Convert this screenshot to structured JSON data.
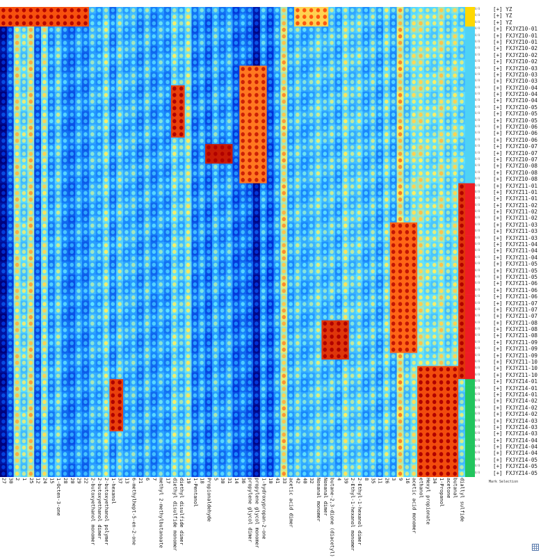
{
  "selection_label": "Mark Selection",
  "chart_data": {
    "type": "heatmap",
    "title": "",
    "xlabel": "",
    "ylabel": "",
    "colormap": [
      "#00007a",
      "#0030d8",
      "#1a8cff",
      "#5fe0ff",
      "#fff060",
      "#ff5a10",
      "#b00000"
    ],
    "row_value_label": "0/0",
    "rows": [
      "[+] YZ",
      "[+] YZ",
      "[+] YZ",
      "[+] FXJYZ10-01",
      "[+] FXJYZ10-01",
      "[+] FXJYZ10-01",
      "[+] FXJYZ10-02",
      "[+] FXJYZ10-02",
      "[+] FXJYZ10-02",
      "[+] FXJYZ10-03",
      "[+] FXJYZ10-03",
      "[+] FXJYZ10-03",
      "[+] FXJYZ10-04",
      "[+] FXJYZ10-04",
      "[+] FXJYZ10-04",
      "[+] FXJYZ10-05",
      "[+] FXJYZ10-05",
      "[+] FXJYZ10-05",
      "[+] FXJYZ10-06",
      "[+] FXJYZ10-06",
      "[+] FXJYZ10-06",
      "[+] FXJYZ10-07",
      "[+] FXJYZ10-07",
      "[+] FXJYZ10-07",
      "[+] FXJYZ10-08",
      "[+] FXJYZ10-08",
      "[+] FXJYZ10-08",
      "[+] FXJYZ11-01",
      "[+] FXJYZ11-01",
      "[+] FXJYZ11-01",
      "[+] FXJYZ11-02",
      "[+] FXJYZ11-02",
      "[+] FXJYZ11-02",
      "[+] FXJYZ11-03",
      "[+] FXJYZ11-03",
      "[+] FXJYZ11-03",
      "[+] FXJYZ11-04",
      "[+] FXJYZ11-04",
      "[+] FXJYZ11-04",
      "[+] FXJYZ11-05",
      "[+] FXJYZ11-05",
      "[+] FXJYZ11-05",
      "[+] FXJYZ11-06",
      "[+] FXJYZ11-06",
      "[+] FXJYZ11-06",
      "[+] FXJYZ11-07",
      "[+] FXJYZ11-07",
      "[+] FXJYZ11-07",
      "[+] FXJYZ11-08",
      "[+] FXJYZ11-08",
      "[+] FXJYZ11-08",
      "[+] FXJYZ11-09",
      "[+] FXJYZ11-09",
      "[+] FXJYZ11-09",
      "[+] FXJYZ11-10",
      "[+] FXJYZ11-10",
      "[+] FXJYZ11-10",
      "[+] FXJYZ14-01",
      "[+] FXJYZ14-01",
      "[+] FXJYZ14-01",
      "[+] FXJYZ14-02",
      "[+] FXJYZ14-02",
      "[+] FXJYZ14-02",
      "[+] FXJYZ14-03",
      "[+] FXJYZ14-03",
      "[+] FXJYZ14-03",
      "[+] FXJYZ14-04",
      "[+] FXJYZ14-04",
      "[+] FXJYZ14-04",
      "[+] FXJYZ14-05",
      "[+] FXJYZ14-05",
      "[+] FXJYZ14-05"
    ],
    "group_colors": [
      {
        "group": "YZ",
        "color": "#ffd800"
      },
      {
        "group": "FXJYZ10",
        "color": "#4fd2f5"
      },
      {
        "group": "FXJYZ11",
        "color": "#ee1c24"
      },
      {
        "group": "FXJYZ14",
        "color": "#22c55e"
      }
    ],
    "columns": [
      {
        "id": "27",
        "name": ""
      },
      {
        "id": "30",
        "name": ""
      },
      {
        "id": "2",
        "name": "2-heptanone monomer"
      },
      {
        "id": "1",
        "name": "2-heptanone dimer"
      },
      {
        "id": "25",
        "name": ""
      },
      {
        "id": "12",
        "name": ""
      },
      {
        "id": "24",
        "name": ""
      },
      {
        "id": "15",
        "name": ""
      },
      {
        "id": "",
        "name": "1-Octen-3-one"
      },
      {
        "id": "28",
        "name": ""
      },
      {
        "id": "20",
        "name": ""
      },
      {
        "id": "29",
        "name": ""
      },
      {
        "id": "22",
        "name": ""
      },
      {
        "id": "",
        "name": "2-butoxyethanol monomer"
      },
      {
        "id": "",
        "name": "2-butoxyethanol dimer"
      },
      {
        "id": "",
        "name": "2-butoxyethanol polymer"
      },
      {
        "id": "",
        "name": "1-hexanol"
      },
      {
        "id": "37",
        "name": ""
      },
      {
        "id": "13",
        "name": ""
      },
      {
        "id": "",
        "name": "6-methylhept-5-en-2-one"
      },
      {
        "id": "21",
        "name": ""
      },
      {
        "id": "6",
        "name": ""
      },
      {
        "id": "7",
        "name": ""
      },
      {
        "id": "",
        "name": "methyl 2-methylbutanoate"
      },
      {
        "id": "17",
        "name": ""
      },
      {
        "id": "",
        "name": "diethyl disulfide monomer"
      },
      {
        "id": "",
        "name": "diethyl disulfide dimer"
      },
      {
        "id": "19",
        "name": ""
      },
      {
        "id": "",
        "name": "1-Pentanol"
      },
      {
        "id": "18",
        "name": ""
      },
      {
        "id": "",
        "name": "Propionaldehyde"
      },
      {
        "id": "5",
        "name": ""
      },
      {
        "id": "30",
        "name": ""
      },
      {
        "id": "31",
        "name": ""
      },
      {
        "id": "14",
        "name": ""
      },
      {
        "id": "36",
        "name": ""
      },
      {
        "id": "",
        "name": "propylene glycol dimer"
      },
      {
        "id": "",
        "name": "propylene glycol monomer"
      },
      {
        "id": "",
        "name": "1-hydroxypropan-2-one"
      },
      {
        "id": "10",
        "name": ""
      },
      {
        "id": "41",
        "name": ""
      },
      {
        "id": "33",
        "name": ""
      },
      {
        "id": "",
        "name": "acetic acid dimer"
      },
      {
        "id": "42",
        "name": ""
      },
      {
        "id": "40",
        "name": ""
      },
      {
        "id": "32",
        "name": ""
      },
      {
        "id": "",
        "name": "Nonanal monomer"
      },
      {
        "id": "",
        "name": "Nonanal dimer"
      },
      {
        "id": "",
        "name": "butane-2,3-dione (diacetyl)"
      },
      {
        "id": "4",
        "name": ""
      },
      {
        "id": "39",
        "name": ""
      },
      {
        "id": "",
        "name": "2-Ethyl-1-hexanol monomer"
      },
      {
        "id": "",
        "name": "2-Ethyl-1-hexanol dimer"
      },
      {
        "id": "8",
        "name": ""
      },
      {
        "id": "35",
        "name": ""
      },
      {
        "id": "11",
        "name": ""
      },
      {
        "id": "26",
        "name": ""
      },
      {
        "id": "3",
        "name": ""
      },
      {
        "id": "9",
        "name": ""
      },
      {
        "id": "16",
        "name": ""
      },
      {
        "id": "",
        "name": "acetic acid monomer"
      },
      {
        "id": "",
        "name": "ethanol"
      },
      {
        "id": "",
        "name": "Hexyl propionate"
      },
      {
        "id": "34",
        "name": ""
      },
      {
        "id": "",
        "name": "1-Propanol"
      },
      {
        "id": "",
        "name": "acetone"
      },
      {
        "id": "",
        "name": "butanal"
      },
      {
        "id": "",
        "name": "diallyl sulfide"
      }
    ],
    "column_intensity": [
      0.04,
      0.22,
      0.56,
      0.46,
      0.58,
      0.24,
      0.52,
      0.32,
      0.44,
      0.3,
      0.26,
      0.36,
      0.28,
      0.4,
      0.36,
      0.48,
      0.3,
      0.44,
      0.36,
      0.4,
      0.3,
      0.42,
      0.3,
      0.38,
      0.32,
      0.48,
      0.4,
      0.5,
      0.26,
      0.36,
      0.24,
      0.4,
      0.3,
      0.38,
      0.22,
      0.3,
      0.24,
      0.06,
      0.34,
      0.2,
      0.36,
      0.6,
      0.36,
      0.44,
      0.36,
      0.4,
      0.46,
      0.38,
      0.44,
      0.36,
      0.5,
      0.42,
      0.46,
      0.36,
      0.44,
      0.34,
      0.48,
      0.36,
      0.62,
      0.44,
      0.52,
      0.54,
      0.5,
      0.48,
      0.54,
      0.46,
      0.52,
      0.46
    ],
    "highlights": [
      {
        "columns": [
          0,
          1,
          2,
          3,
          4,
          5,
          6,
          7,
          8,
          9,
          10,
          11,
          12
        ],
        "rows": [
          0,
          1,
          2
        ],
        "value": 0.85
      },
      {
        "columns": [
          43,
          44,
          45,
          46,
          47
        ],
        "rows": [
          0,
          1,
          2
        ],
        "value": 0.7
      },
      {
        "columns": [
          25,
          26
        ],
        "rows": [
          12,
          13,
          14,
          15,
          16,
          17,
          18,
          19
        ],
        "value": 0.88
      },
      {
        "columns": [
          30,
          31,
          32,
          33
        ],
        "rows": [
          21,
          22,
          23
        ],
        "value": 0.95
      },
      {
        "columns": [
          35,
          36,
          37,
          38
        ],
        "rows": [
          9,
          10,
          11,
          12,
          13,
          14,
          15,
          16,
          17,
          18,
          19,
          20,
          21,
          22,
          23,
          24,
          25,
          26
        ],
        "value": 0.8
      },
      {
        "columns": [
          47,
          48,
          49,
          50
        ],
        "rows": [
          48,
          49,
          50,
          51,
          52,
          53
        ],
        "value": 0.9
      },
      {
        "columns": [
          16,
          17
        ],
        "rows": [
          57,
          58,
          59,
          60,
          61,
          62,
          63,
          64
        ],
        "value": 0.88
      },
      {
        "columns": [
          57,
          58,
          59,
          60
        ],
        "rows": [
          33,
          34,
          35,
          36,
          37,
          38,
          39,
          40,
          41,
          42,
          43,
          44,
          45,
          46,
          47,
          48,
          49,
          50,
          51,
          52
        ],
        "value": 0.82
      },
      {
        "columns": [
          61,
          62,
          63,
          64,
          65,
          66
        ],
        "rows": [
          55,
          56,
          57,
          58,
          59,
          60,
          61,
          62,
          63,
          64,
          65,
          66,
          67,
          68,
          69,
          70,
          71
        ],
        "value": 0.86
      },
      {
        "columns": [
          67
        ],
        "rows": [
          27,
          28,
          29,
          30,
          31,
          32,
          33,
          34,
          35,
          36,
          37,
          38,
          39,
          40,
          41,
          42,
          43,
          44,
          45,
          46,
          47,
          48,
          49,
          50,
          51,
          52,
          53,
          54,
          55,
          56
        ],
        "value": 0.9
      }
    ],
    "legend": "none",
    "grid": false
  }
}
